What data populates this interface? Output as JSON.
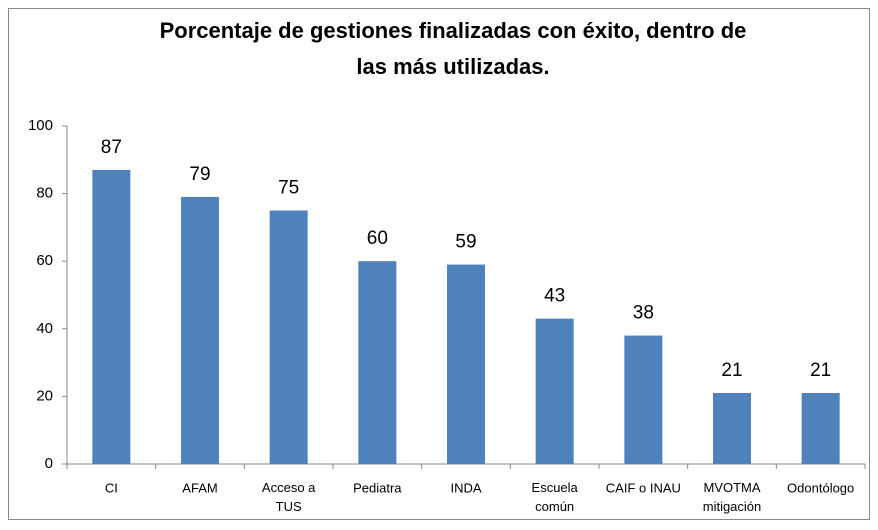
{
  "chart_data": {
    "type": "bar",
    "title": "Porcentaje de gestiones finalizadas con éxito, dentro de\nlas más utilizadas.",
    "categories": [
      "CI",
      "AFAM",
      "Acceso a\nTUS",
      "Pediatra",
      "INDA",
      "Escuela\ncomún",
      "CAIF o INAU",
      "MVOTMA\nmitigación",
      "Odontólogo"
    ],
    "values": [
      87,
      79,
      75,
      60,
      59,
      43,
      38,
      21,
      21
    ],
    "color": "#4f81bd",
    "ylim": [
      0,
      100
    ],
    "yticks": [
      0,
      20,
      40,
      60,
      80,
      100
    ],
    "grid": false
  }
}
